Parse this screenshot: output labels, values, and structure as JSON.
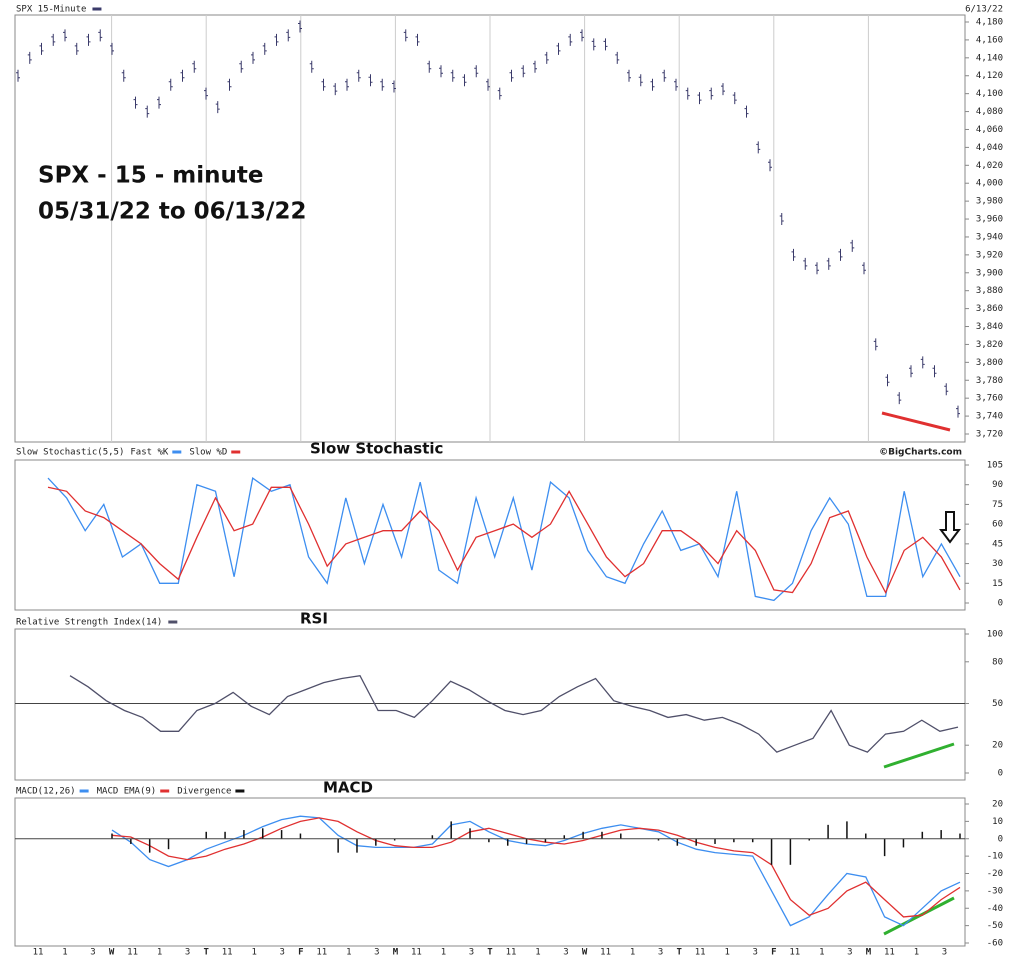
{
  "date": "6/13/22",
  "credit": "©BigCharts.com",
  "x_labels": [
    "11",
    "1",
    "3",
    "W",
    "11",
    "1",
    "3",
    "T",
    "11",
    "1",
    "3",
    "F",
    "11",
    "1",
    "3",
    "M",
    "11",
    "1",
    "3",
    "T",
    "11",
    "1",
    "3",
    "W",
    "11",
    "1",
    "3",
    "T",
    "11",
    "1",
    "3",
    "F",
    "11",
    "1",
    "3",
    "M",
    "11",
    "1",
    "3"
  ],
  "chart_data": [
    {
      "type": "ohlc",
      "title": "SPX 15-Minute",
      "annotations": [
        "SPX - 15 - minute",
        "05/31/22 to 06/13/22"
      ],
      "series": [
        {
          "name": "SPX",
          "color": "#3a3a6a",
          "values": [
            4120,
            4140,
            4150,
            4160,
            4165,
            4150,
            4160,
            4165,
            4150,
            4120,
            4090,
            4080,
            4090,
            4110,
            4120,
            4130,
            4100,
            4085,
            4110,
            4130,
            4140,
            4150,
            4160,
            4165,
            4175,
            4130,
            4110,
            4105,
            4110,
            4120,
            4115,
            4110,
            4108,
            4165,
            4160,
            4130,
            4125,
            4120,
            4115,
            4125,
            4110,
            4100,
            4120,
            4125,
            4130,
            4140,
            4150,
            4160,
            4165,
            4155,
            4155,
            4140,
            4120,
            4115,
            4110,
            4120,
            4110,
            4100,
            4095,
            4100,
            4105,
            4095,
            4080,
            4040,
            4020,
            3960,
            3920,
            3910,
            3905,
            3910,
            3920,
            3930,
            3905,
            3820,
            3780,
            3760,
            3790,
            3800,
            3790,
            3770,
            3745
          ]
        }
      ],
      "ylim": [
        3720,
        4180
      ],
      "yticks": [
        {
          "value": 3720,
          "label": "3,720"
        },
        {
          "value": 3740,
          "label": "3,740"
        },
        {
          "value": 3760,
          "label": "3,760"
        },
        {
          "value": 3780,
          "label": "3,780"
        },
        {
          "value": 3800,
          "label": "3,800"
        },
        {
          "value": 3820,
          "label": "3,820"
        },
        {
          "value": 3840,
          "label": "3,840"
        },
        {
          "value": 3860,
          "label": "3,860"
        },
        {
          "value": 3880,
          "label": "3,880"
        },
        {
          "value": 3900,
          "label": "3,900"
        },
        {
          "value": 3920,
          "label": "3,920"
        },
        {
          "value": 3940,
          "label": "3,940"
        },
        {
          "value": 3960,
          "label": "3,960"
        },
        {
          "value": 3980,
          "label": "3,980"
        },
        {
          "value": 4000,
          "label": "4,000"
        },
        {
          "value": 4020,
          "label": "4,020"
        },
        {
          "value": 4040,
          "label": "4,040"
        },
        {
          "value": 4060,
          "label": "4,060"
        },
        {
          "value": 4080,
          "label": "4,080"
        },
        {
          "value": 4100,
          "label": "4,100"
        },
        {
          "value": 4120,
          "label": "4,120"
        },
        {
          "value": 4140,
          "label": "4,140"
        },
        {
          "value": 4160,
          "label": "4,160"
        },
        {
          "value": 4180,
          "label": "4,180"
        }
      ]
    },
    {
      "type": "line",
      "title": "Slow Stochastic(5,5)",
      "annotations": [
        "Slow Stochastic"
      ],
      "series": [
        {
          "name": "Fast %K",
          "color": "#3d8ef0",
          "values": [
            95,
            80,
            55,
            75,
            35,
            45,
            15,
            15,
            90,
            85,
            20,
            95,
            85,
            90,
            35,
            15,
            80,
            30,
            75,
            35,
            92,
            25,
            15,
            80,
            35,
            80,
            25,
            92,
            80,
            40,
            20,
            15,
            45,
            70,
            40,
            45,
            20,
            85,
            5,
            2,
            15,
            55,
            80,
            60,
            5,
            5,
            85,
            20,
            45,
            20
          ]
        },
        {
          "name": "Slow %D",
          "color": "#e03030",
          "values": [
            88,
            85,
            70,
            65,
            55,
            45,
            30,
            18,
            50,
            80,
            55,
            60,
            88,
            88,
            60,
            28,
            45,
            50,
            55,
            55,
            70,
            55,
            25,
            50,
            55,
            60,
            50,
            60,
            85,
            60,
            35,
            20,
            30,
            55,
            55,
            45,
            30,
            55,
            40,
            10,
            8,
            30,
            65,
            70,
            35,
            8,
            40,
            50,
            35,
            10
          ]
        }
      ],
      "ylim": [
        0,
        105
      ],
      "yticks": [
        0,
        15,
        30,
        45,
        60,
        75,
        90,
        105
      ]
    },
    {
      "type": "line",
      "title": "Relative Strength Index(14)",
      "annotations": [
        "RSI"
      ],
      "hline": 50,
      "series": [
        {
          "name": "Relative Strength Index(14)",
          "color": "#50506a",
          "values": [
            70,
            62,
            52,
            45,
            40,
            30,
            30,
            45,
            50,
            58,
            48,
            42,
            55,
            60,
            65,
            68,
            70,
            45,
            45,
            40,
            52,
            66,
            60,
            52,
            45,
            42,
            45,
            55,
            62,
            68,
            52,
            48,
            45,
            40,
            42,
            38,
            40,
            35,
            28,
            15,
            20,
            25,
            45,
            20,
            15,
            28,
            30,
            38,
            30,
            33
          ]
        }
      ],
      "ylim": [
        0,
        100
      ],
      "yticks": [
        0,
        20,
        50,
        80,
        100
      ]
    },
    {
      "type": "macd",
      "title": "MACD",
      "annotations": [
        "MACD"
      ],
      "series": [
        {
          "name": "MACD(12,26)",
          "color": "#3d8ef0",
          "values": [
            5,
            -2,
            -12,
            -16,
            -12,
            -6,
            -2,
            2,
            7,
            11,
            13,
            12,
            2,
            -4,
            -5,
            -5,
            -5,
            -3,
            8,
            10,
            4,
            -1,
            -3,
            -4,
            -1,
            3,
            6,
            8,
            6,
            4,
            -2,
            -6,
            -8,
            -9,
            -10,
            -30,
            -50,
            -45,
            -32,
            -20,
            -22,
            -45,
            -50,
            -40,
            -30,
            -25
          ]
        },
        {
          "name": "MACD EMA(9)",
          "color": "#e03030",
          "values": [
            2,
            1,
            -4,
            -10,
            -12,
            -10,
            -6,
            -3,
            1,
            6,
            10,
            12,
            10,
            4,
            -1,
            -4,
            -5,
            -5,
            -2,
            4,
            6,
            3,
            0,
            -2,
            -3,
            -1,
            2,
            5,
            6,
            5,
            2,
            -2,
            -5,
            -7,
            -8,
            -15,
            -35,
            -44,
            -40,
            -30,
            -25,
            -35,
            -45,
            -44,
            -35,
            -28
          ]
        },
        {
          "name": "Divergence",
          "color": "#111111",
          "values": [
            3,
            -3,
            -8,
            -6,
            0,
            4,
            4,
            5,
            6,
            5,
            3,
            0,
            -8,
            -8,
            -4,
            -1,
            0,
            2,
            10,
            6,
            -2,
            -4,
            -3,
            -2,
            2,
            4,
            4,
            3,
            0,
            -1,
            -4,
            -4,
            -3,
            -2,
            -2,
            -15,
            -15,
            -1,
            8,
            10,
            3,
            -10,
            -5,
            4,
            5,
            3
          ]
        }
      ],
      "ylim": [
        -60,
        20
      ],
      "yticks": [
        -60,
        -50,
        -40,
        -30,
        -20,
        -10,
        0,
        10,
        20
      ]
    }
  ]
}
